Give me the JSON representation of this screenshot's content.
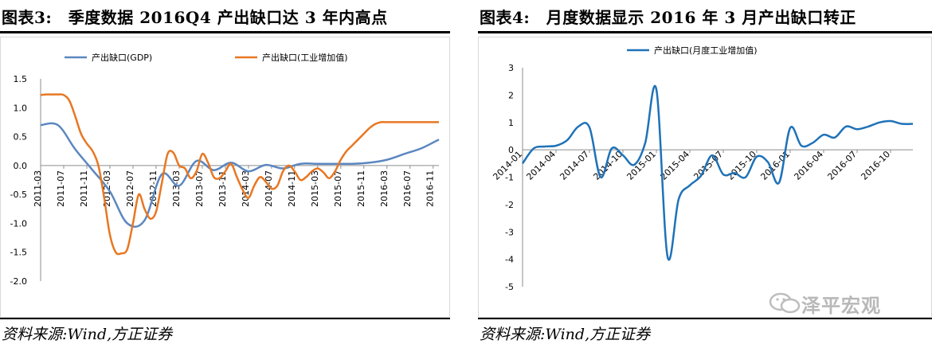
{
  "left_panel": {
    "title": "图表3:　季度数据 2016Q4 产出缺口达 3 年内高点",
    "source": "资料来源:Wind,方正证券"
  },
  "right_panel": {
    "title": "图表4:　月度数据显示 2016 年 3 月产出缺口转正",
    "source": "资料来源:Wind,方正证券"
  },
  "watermark": {
    "text": "泽平宏观",
    "icon": "wechat-icon"
  },
  "chart_data": [
    {
      "type": "line",
      "title": "",
      "xlabel": "",
      "ylabel": "",
      "ylim": [
        -2.0,
        1.5
      ],
      "yticks": [
        "1.5",
        "1.0",
        "0.5",
        "0.0",
        "-0.5",
        "-1.0",
        "-1.5",
        "-2.0"
      ],
      "ytick_values": [
        1.5,
        1.0,
        0.5,
        0.0,
        -0.5,
        -1.0,
        -1.5,
        -2.0
      ],
      "categories": [
        "2011-03",
        "2011-07",
        "2011-11",
        "2012-03",
        "2012-07",
        "2012-11",
        "2013-03",
        "2013-07",
        "2013-11",
        "2014-03",
        "2014-07",
        "2014-11",
        "2015-03",
        "2015-07",
        "2015-11",
        "2016-03",
        "2016-07",
        "2016-11"
      ],
      "x_start": 0,
      "x_end": 69,
      "series": [
        {
          "name": "产出缺口(GDP)",
          "color": "#5b87c0",
          "x": [
            0,
            3,
            6,
            9,
            12,
            15,
            18,
            21,
            24,
            27,
            30,
            33,
            36,
            39,
            42,
            45,
            48,
            51,
            54,
            57,
            60,
            63,
            66,
            69
          ],
          "values": [
            0.7,
            0.7,
            0.28,
            -0.08,
            -0.45,
            -1.0,
            -0.95,
            -0.15,
            -0.35,
            0.08,
            -0.08,
            0.05,
            -0.1,
            0.01,
            -0.05,
            0.03,
            0.03,
            0.03,
            0.03,
            0.05,
            0.1,
            0.2,
            0.3,
            0.45
          ]
        },
        {
          "name": "产出缺口(工业增加值)",
          "color": "#e87722",
          "x": [
            0,
            1,
            2,
            3,
            4,
            5,
            6,
            7,
            8,
            9,
            10,
            11,
            12,
            13,
            14,
            15,
            16,
            17,
            18,
            19,
            20,
            21,
            22,
            23,
            24,
            25,
            26,
            27,
            28,
            29,
            30,
            31,
            32,
            33,
            34,
            35,
            36,
            37,
            38,
            39,
            40,
            41,
            42,
            43,
            44,
            45,
            46,
            47,
            48,
            49,
            50,
            51,
            52,
            53,
            54,
            55,
            56,
            57,
            58,
            59,
            60,
            61,
            62,
            63,
            64,
            65,
            66,
            67,
            68,
            69
          ],
          "values": [
            1.22,
            1.23,
            1.23,
            1.23,
            1.22,
            1.12,
            0.85,
            0.55,
            0.38,
            0.25,
            0.0,
            -0.55,
            -1.2,
            -1.5,
            -1.52,
            -1.45,
            -1.0,
            -0.5,
            -0.75,
            -0.92,
            -0.8,
            -0.3,
            0.2,
            0.22,
            0.0,
            -0.05,
            -0.22,
            -0.1,
            0.2,
            0.05,
            -0.2,
            -0.22,
            -0.1,
            0.03,
            -0.2,
            -0.42,
            -0.56,
            -0.35,
            -0.2,
            -0.28,
            -0.4,
            -0.35,
            -0.1,
            0.0,
            -0.1,
            -0.25,
            -0.2,
            -0.1,
            -0.05,
            -0.12,
            -0.22,
            -0.1,
            0.1,
            0.25,
            0.35,
            0.45,
            0.55,
            0.65,
            0.72,
            0.75,
            0.75,
            0.75,
            0.75,
            0.75,
            0.75,
            0.75,
            0.75,
            0.75,
            0.75,
            0.75
          ]
        }
      ],
      "legend": "top"
    },
    {
      "type": "line",
      "title": "",
      "xlabel": "",
      "ylabel": "",
      "ylim": [
        -5,
        3
      ],
      "yticks": [
        "3",
        "2",
        "1",
        "0",
        "-1",
        "-2",
        "-3",
        "-4",
        "-5"
      ],
      "ytick_values": [
        3,
        2,
        1,
        0,
        -1,
        -2,
        -3,
        -4,
        -5
      ],
      "categories": [
        "2014-01",
        "2014-04",
        "2014-07",
        "2014-10",
        "2015-01",
        "2015-04",
        "2015-07",
        "2015-10",
        "2016-01",
        "2016-04",
        "2016-07",
        "2016-10"
      ],
      "x_start": 0,
      "x_end": 35,
      "series": [
        {
          "name": "产出缺口(月度工业增加值)",
          "color": "#1f72b8",
          "x": [
            0,
            1,
            2,
            3,
            4,
            5,
            6,
            7,
            8,
            9,
            10,
            11,
            12,
            13,
            14,
            15,
            16,
            17,
            18,
            19,
            20,
            21,
            22,
            23,
            24,
            25,
            26,
            27,
            28,
            29,
            30,
            31,
            32,
            33,
            34,
            35
          ],
          "values": [
            -0.5,
            0.05,
            0.12,
            0.15,
            0.35,
            0.85,
            0.82,
            -1.0,
            0.05,
            -0.2,
            -0.55,
            0.25,
            2.2,
            -3.9,
            -1.8,
            -1.3,
            -0.95,
            -0.2,
            -0.9,
            -0.85,
            -1.0,
            -0.25,
            -0.45,
            -1.2,
            0.8,
            0.15,
            0.25,
            0.55,
            0.45,
            0.85,
            0.75,
            0.85,
            1.0,
            1.05,
            0.95,
            0.95
          ]
        }
      ],
      "legend": "top"
    }
  ]
}
